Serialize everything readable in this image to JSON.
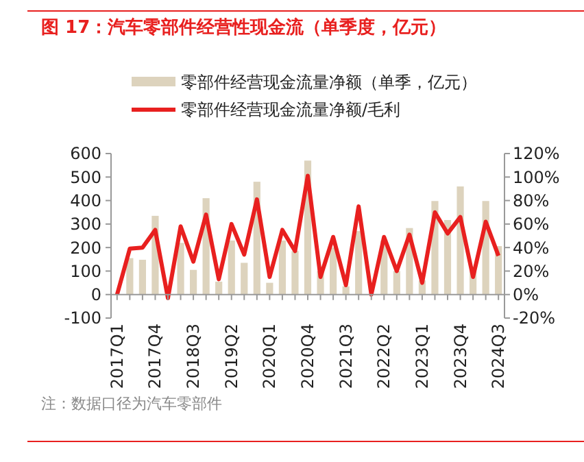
{
  "chart_data": {
    "type": "bar",
    "title": "图 17：汽车零部件经营性现金流（单季度，亿元）",
    "categories": [
      "2017Q1",
      null,
      null,
      "2017Q4",
      null,
      null,
      "2018Q3",
      null,
      null,
      "2019Q2",
      null,
      null,
      "2020Q1",
      null,
      null,
      "2020Q4",
      null,
      null,
      "2021Q3",
      null,
      null,
      "2022Q2",
      null,
      null,
      "2023Q1",
      null,
      null,
      "2023Q4",
      null,
      null,
      "2024Q3"
    ],
    "series": [
      {
        "name": "零部件经营现金流量净额（单季，亿元）",
        "color": "#ddd3bd",
        "values": [
          null,
          155,
          148,
          335,
          null,
          220,
          105,
          410,
          55,
          230,
          135,
          480,
          50,
          230,
          185,
          570,
          100,
          200,
          35,
          270,
          null,
          230,
          100,
          283,
          60,
          398,
          317,
          460,
          100,
          398,
          206
        ]
      },
      {
        "name": "零部件经营现金流量净额/毛利",
        "type": "line",
        "axis": "y2",
        "color": "#e8201f",
        "values": [
          0,
          39,
          40,
          55,
          -3,
          58,
          28,
          68,
          13,
          60,
          34,
          81,
          15,
          55,
          37,
          101,
          15,
          49,
          8,
          75,
          0,
          49,
          20,
          51,
          10,
          70,
          52,
          66,
          15,
          62,
          33
        ]
      }
    ],
    "ylim": [
      -100,
      600
    ],
    "yticks": [
      -100,
      0,
      100,
      200,
      300,
      400,
      500,
      600
    ],
    "y2lim": [
      -20,
      120
    ],
    "y2ticks": [
      {
        "value": -20,
        "label": "-20%"
      },
      {
        "value": 0,
        "label": "0%"
      },
      {
        "value": 20,
        "label": "20%"
      },
      {
        "value": 40,
        "label": "40%"
      },
      {
        "value": 60,
        "label": "60%"
      },
      {
        "value": 80,
        "label": "80%"
      },
      {
        "value": 100,
        "label": "100%"
      },
      {
        "value": 120,
        "label": "120%"
      }
    ],
    "legend": "top",
    "grid": false,
    "annotations": [
      "注：数据口径为汽车零部件"
    ]
  }
}
